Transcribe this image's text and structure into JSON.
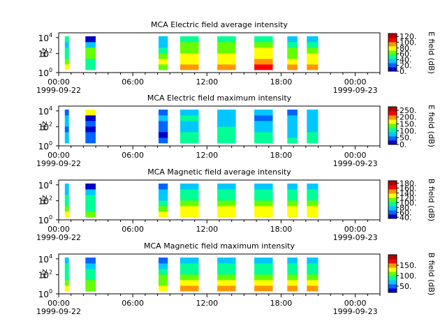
{
  "figure": {
    "background": "#ffffff"
  },
  "chart_data": [
    {
      "type": "heatmap",
      "title": "MCA  Electric field average intensity",
      "ylabel": "Hz",
      "y_scale": "log",
      "y_ticks": [
        {
          "base": "10",
          "exp": "0"
        },
        {
          "base": "10",
          "exp": "2"
        },
        {
          "base": "10",
          "exp": "4"
        }
      ],
      "x_ticks": [
        "00:00",
        "06:00",
        "12:00",
        "18:00",
        "00:00"
      ],
      "x_dates": [
        "1999-09-22",
        "1999-09-23"
      ],
      "colorbar_label": "E field (dB)",
      "colorbar_ticks": [
        "0.",
        "20.",
        "40.",
        "60.",
        "80.",
        "100.",
        "120."
      ],
      "colorbar_range": [
        0,
        130
      ],
      "colormap": [
        "#0000c8",
        "#0064ff",
        "#00c8ff",
        "#00ff96",
        "#64ff00",
        "#ffff00",
        "#ff9600",
        "#ff0000",
        "#b40000"
      ],
      "segments": [
        {
          "start": "00:30",
          "end": "00:50",
          "bands": [
            "#ffff00",
            "#64ff00",
            "#00ff96",
            "#00ff96",
            "#00c8ff",
            "#00ff96"
          ]
        },
        {
          "start": "02:10",
          "end": "03:00",
          "bands": [
            "#00ff96",
            "#00ff96",
            "#64ff00",
            "#64ff00",
            "#00c8ff",
            "#0000c8"
          ]
        },
        {
          "start": "08:05",
          "end": "08:50",
          "bands": [
            "#64ff00",
            "#ffff00",
            "#64ff00",
            "#00ff96",
            "#00c8ff",
            "#00c8ff"
          ]
        },
        {
          "start": "09:50",
          "end": "11:20",
          "bands": [
            "#ff9600",
            "#ffff00",
            "#ffff00",
            "#64ff00",
            "#64ff00",
            "#00ff96"
          ]
        },
        {
          "start": "12:50",
          "end": "14:20",
          "bands": [
            "#ff9600",
            "#ffff00",
            "#ffff00",
            "#64ff00",
            "#64ff00",
            "#00ff96"
          ]
        },
        {
          "start": "15:50",
          "end": "17:20",
          "bands": [
            "#ff0000",
            "#ff9600",
            "#ffff00",
            "#ffff00",
            "#64ff00",
            "#00ff96"
          ]
        },
        {
          "start": "18:30",
          "end": "19:20",
          "bands": [
            "#ff9600",
            "#ffff00",
            "#64ff00",
            "#64ff00",
            "#00ff96",
            "#00c8ff"
          ]
        },
        {
          "start": "20:05",
          "end": "21:00",
          "bands": [
            "#ff9600",
            "#ffff00",
            "#ffff00",
            "#64ff00",
            "#00ff96",
            "#00c8ff"
          ]
        }
      ]
    },
    {
      "type": "heatmap",
      "title": "MCA  Electric field maximum intensity",
      "ylabel": "Hz",
      "y_scale": "log",
      "y_ticks": [
        {
          "base": "10",
          "exp": "0"
        },
        {
          "base": "10",
          "exp": "2"
        },
        {
          "base": "10",
          "exp": "4"
        }
      ],
      "x_ticks": [
        "00:00",
        "06:00",
        "12:00",
        "18:00",
        "00:00"
      ],
      "x_dates": [
        "1999-09-22",
        "1999-09-23"
      ],
      "colorbar_label": "E field (dB)",
      "colorbar_ticks": [
        "0.",
        "50.",
        "100.",
        "150.",
        "200.",
        "250."
      ],
      "colorbar_range": [
        0,
        275
      ],
      "colormap": [
        "#0000c8",
        "#0064ff",
        "#00c8ff",
        "#00ff96",
        "#64ff00",
        "#ffff00",
        "#ff9600",
        "#ff0000",
        "#b40000"
      ],
      "segments": [
        {
          "start": "00:30",
          "end": "00:50",
          "bands": [
            "#00c8ff",
            "#00c8ff",
            "#0064ff",
            "#00c8ff",
            "#00c8ff",
            "#0064ff"
          ]
        },
        {
          "start": "02:10",
          "end": "03:00",
          "bands": [
            "#0064ff",
            "#0064ff",
            "#0000c8",
            "#0064ff",
            "#0000c8",
            "#ffff00"
          ]
        },
        {
          "start": "08:05",
          "end": "08:50",
          "bands": [
            "#0064ff",
            "#0000c8",
            "#0064ff",
            "#0064ff",
            "#00c8ff",
            "#0064ff"
          ]
        },
        {
          "start": "09:50",
          "end": "11:20",
          "bands": [
            "#00ff96",
            "#00ff96",
            "#00c8ff",
            "#00c8ff",
            "#00ff96",
            "#00c8ff"
          ]
        },
        {
          "start": "12:50",
          "end": "14:20",
          "bands": [
            "#00ff96",
            "#00ff96",
            "#00ff96",
            "#00c8ff",
            "#00c8ff",
            "#00c8ff"
          ]
        },
        {
          "start": "15:50",
          "end": "17:20",
          "bands": [
            "#00ff96",
            "#00ff96",
            "#00c8ff",
            "#00c8ff",
            "#0064ff",
            "#00c8ff"
          ]
        },
        {
          "start": "18:30",
          "end": "19:20",
          "bands": [
            "#00ff96",
            "#00c8ff",
            "#00c8ff",
            "#00c8ff",
            "#00c8ff",
            "#0064ff"
          ]
        },
        {
          "start": "20:05",
          "end": "21:00",
          "bands": [
            "#00ff96",
            "#00ff96",
            "#00c8ff",
            "#00c8ff",
            "#00c8ff",
            "#00c8ff"
          ]
        }
      ]
    },
    {
      "type": "heatmap",
      "title": "MCA  Magnetic field average intensity",
      "ylabel": "Hz",
      "y_scale": "log",
      "y_ticks": [
        {
          "base": "10",
          "exp": "0"
        },
        {
          "base": "10",
          "exp": "2"
        },
        {
          "base": "10",
          "exp": "4"
        }
      ],
      "x_ticks": [
        "00:00",
        "06:00",
        "12:00",
        "18:00",
        "00:00"
      ],
      "x_dates": [
        "1999-09-22",
        "1999-09-23"
      ],
      "colorbar_label": "B field (dB)",
      "colorbar_ticks": [
        "40.",
        "60.",
        "80.",
        "100.",
        "120.",
        "140.",
        "160.",
        "180."
      ],
      "colorbar_range": [
        35,
        190
      ],
      "colormap": [
        "#0000c8",
        "#0064ff",
        "#00c8ff",
        "#00ff96",
        "#64ff00",
        "#ffff00",
        "#ff9600",
        "#ff0000",
        "#b40000"
      ],
      "segments": [
        {
          "start": "00:30",
          "end": "00:50",
          "bands": [
            "#ffff00",
            "#64ff00",
            "#00ff96",
            "#00ff96",
            "#00c8ff",
            "#00c8ff"
          ]
        },
        {
          "start": "02:10",
          "end": "03:00",
          "bands": [
            "#64ff00",
            "#00ff96",
            "#00ff96",
            "#00ff96",
            "#00c8ff",
            "#0000c8"
          ]
        },
        {
          "start": "08:05",
          "end": "08:50",
          "bands": [
            "#ffff00",
            "#64ff00",
            "#00ff96",
            "#00c8ff",
            "#00c8ff",
            "#0064ff"
          ]
        },
        {
          "start": "09:50",
          "end": "11:20",
          "bands": [
            "#ffff00",
            "#ffff00",
            "#64ff00",
            "#00ff96",
            "#00ff96",
            "#00c8ff"
          ]
        },
        {
          "start": "12:50",
          "end": "14:20",
          "bands": [
            "#ffff00",
            "#ffff00",
            "#64ff00",
            "#00ff96",
            "#00ff96",
            "#00c8ff"
          ]
        },
        {
          "start": "15:50",
          "end": "17:20",
          "bands": [
            "#ffff00",
            "#ffff00",
            "#64ff00",
            "#00ff96",
            "#00ff96",
            "#00c8ff"
          ]
        },
        {
          "start": "18:30",
          "end": "19:20",
          "bands": [
            "#ffff00",
            "#ffff00",
            "#64ff00",
            "#00ff96",
            "#00ff96",
            "#00c8ff"
          ]
        },
        {
          "start": "20:05",
          "end": "21:00",
          "bands": [
            "#ffff00",
            "#ffff00",
            "#64ff00",
            "#00ff96",
            "#00ff96",
            "#00c8ff"
          ]
        }
      ]
    },
    {
      "type": "heatmap",
      "title": "MCA  Magnetic field maximum intensity",
      "ylabel": "Hz",
      "y_scale": "log",
      "y_ticks": [
        {
          "base": "10",
          "exp": "0"
        },
        {
          "base": "10",
          "exp": "2"
        },
        {
          "base": "10",
          "exp": "4"
        }
      ],
      "x_ticks": [
        "00:00",
        "06:00",
        "12:00",
        "18:00",
        "00:00"
      ],
      "x_dates": [
        "1999-09-22",
        "1999-09-23"
      ],
      "colorbar_label": "B field (dB)",
      "colorbar_ticks": [
        "50.",
        "100.",
        "150."
      ],
      "colorbar_range": [
        20,
        200
      ],
      "colormap": [
        "#0000c8",
        "#0064ff",
        "#00c8ff",
        "#00ff96",
        "#64ff00",
        "#ffff00",
        "#ff9600",
        "#ff0000",
        "#b40000"
      ],
      "segments": [
        {
          "start": "00:30",
          "end": "00:50",
          "bands": [
            "#ffff00",
            "#64ff00",
            "#00ff96",
            "#00ff96",
            "#00ff96",
            "#00c8ff"
          ]
        },
        {
          "start": "02:10",
          "end": "03:00",
          "bands": [
            "#64ff00",
            "#64ff00",
            "#00ff96",
            "#00ff96",
            "#00c8ff",
            "#0064ff"
          ]
        },
        {
          "start": "08:05",
          "end": "08:50",
          "bands": [
            "#ffff00",
            "#64ff00",
            "#64ff00",
            "#00ff96",
            "#00c8ff",
            "#0064ff"
          ]
        },
        {
          "start": "09:50",
          "end": "11:20",
          "bands": [
            "#ff9600",
            "#ffff00",
            "#64ff00",
            "#00ff96",
            "#00ff96",
            "#00c8ff"
          ]
        },
        {
          "start": "12:50",
          "end": "14:20",
          "bands": [
            "#ff9600",
            "#ffff00",
            "#64ff00",
            "#00ff96",
            "#00ff96",
            "#00c8ff"
          ]
        },
        {
          "start": "15:50",
          "end": "17:20",
          "bands": [
            "#ff9600",
            "#ffff00",
            "#64ff00",
            "#00ff96",
            "#00ff96",
            "#00c8ff"
          ]
        },
        {
          "start": "18:30",
          "end": "19:20",
          "bands": [
            "#ff9600",
            "#ffff00",
            "#64ff00",
            "#00ff96",
            "#00ff96",
            "#00c8ff"
          ]
        },
        {
          "start": "20:05",
          "end": "21:00",
          "bands": [
            "#ff9600",
            "#ffff00",
            "#64ff00",
            "#00ff96",
            "#00ff96",
            "#00c8ff"
          ]
        }
      ]
    }
  ]
}
